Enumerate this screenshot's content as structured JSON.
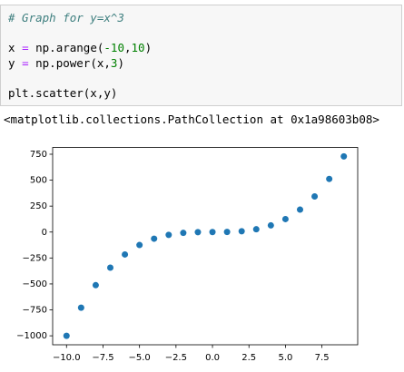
{
  "code": {
    "lines": [
      "# Graph for y=x^3",
      "x = np.arange(-10,10)",
      "y = np.power(x,3)",
      "plt.scatter(x,y)"
    ]
  },
  "output": {
    "text": "<matplotlib.collections.PathCollection at 0x1a98603b08>"
  },
  "chart_data": {
    "type": "scatter",
    "color": "#1f77b4",
    "x": [
      -10,
      -9,
      -8,
      -7,
      -6,
      -5,
      -4,
      -3,
      -2,
      -1,
      0,
      1,
      2,
      3,
      4,
      5,
      6,
      7,
      8,
      9
    ],
    "values": [
      -1000,
      -729,
      -512,
      -343,
      -216,
      -125,
      -64,
      -27,
      -8,
      -1,
      0,
      1,
      8,
      27,
      64,
      125,
      216,
      343,
      512,
      729
    ],
    "xlim": [
      -10.95,
      9.95
    ],
    "ylim": [
      -1086.45,
      815.45
    ],
    "xticks": [
      {
        "value": -10,
        "label": "−10.0"
      },
      {
        "value": -7.5,
        "label": "−7.5"
      },
      {
        "value": -5,
        "label": "−5.0"
      },
      {
        "value": -2.5,
        "label": "−2.5"
      },
      {
        "value": 0,
        "label": "0.0"
      },
      2.5,
      {
        "value": 5,
        "label": "5.0"
      },
      7.5
    ],
    "yticks": [
      {
        "value": -1000,
        "label": "−1000"
      },
      {
        "value": -750,
        "label": "−750"
      },
      {
        "value": -500,
        "label": "−500"
      },
      {
        "value": -250,
        "label": "−250"
      },
      0,
      250,
      500,
      750
    ]
  }
}
